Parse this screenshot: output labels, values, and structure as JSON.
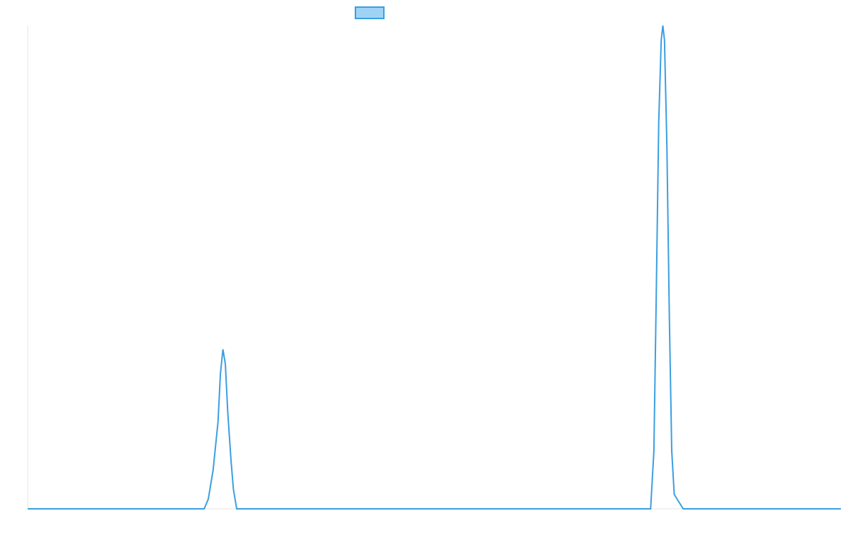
{
  "chart_data": {
    "type": "line",
    "title": "",
    "xlabel": "",
    "ylabel": "",
    "legend": {
      "placement": "top-center",
      "swatch_fill": "#9fd3f5",
      "swatch_stroke": "#3b9fe0"
    },
    "grid": false,
    "xlim": [
      0,
      100
    ],
    "ylim": [
      0,
      1
    ],
    "series": [
      {
        "color": "#3b9fe0",
        "points": [
          [
            0,
            0
          ],
          [
            21.7,
            0
          ],
          [
            22.2,
            0.02
          ],
          [
            22.8,
            0.08
          ],
          [
            23.4,
            0.18
          ],
          [
            23.7,
            0.28
          ],
          [
            24.0,
            0.33
          ],
          [
            24.3,
            0.3
          ],
          [
            24.6,
            0.2
          ],
          [
            25.0,
            0.1
          ],
          [
            25.3,
            0.04
          ],
          [
            25.7,
            0
          ],
          [
            76.6,
            0
          ],
          [
            77.0,
            0.12
          ],
          [
            77.3,
            0.45
          ],
          [
            77.6,
            0.8
          ],
          [
            77.9,
            0.97
          ],
          [
            78.1,
            1.0
          ],
          [
            78.3,
            0.97
          ],
          [
            78.6,
            0.75
          ],
          [
            78.9,
            0.4
          ],
          [
            79.2,
            0.12
          ],
          [
            79.5,
            0.03
          ],
          [
            80.6,
            0
          ],
          [
            100,
            0
          ]
        ]
      }
    ]
  }
}
